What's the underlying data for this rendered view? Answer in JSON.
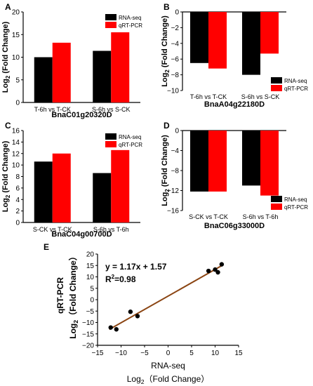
{
  "chart_data": [
    {
      "panel": "A",
      "type": "bar",
      "title": "BnaC01g20320D",
      "ylabel_main": "Log",
      "ylabel_sub": "2",
      "ylabel_rest": " (Fold Change)",
      "categories": [
        "T-6h vs T-CK",
        "S-6h vs S-CK"
      ],
      "ylim": [
        0,
        20
      ],
      "yticks": [
        0,
        5,
        10,
        15,
        20
      ],
      "legend": [
        "RNA-seq",
        "qRT-PCR"
      ],
      "legend_position": "top-right",
      "series": [
        {
          "name": "RNA-seq",
          "values": [
            10.0,
            11.4
          ]
        },
        {
          "name": "qRT-PCR",
          "values": [
            13.2,
            15.5
          ]
        }
      ]
    },
    {
      "panel": "B",
      "type": "bar",
      "title": "BnaA04g22180D",
      "ylabel_main": "Log",
      "ylabel_sub": "2",
      "ylabel_rest": " (Fold Change)",
      "categories": [
        "T-6h vs T-CK",
        "S-6h vs S-CK"
      ],
      "ylim": [
        -10,
        0
      ],
      "yticks": [
        0,
        -2,
        -4,
        -6,
        -8,
        -10
      ],
      "legend": [
        "RNA-seq",
        "qRT-PCR"
      ],
      "legend_position": "bottom-right",
      "series": [
        {
          "name": "RNA-seq",
          "values": [
            -6.5,
            -8.0
          ]
        },
        {
          "name": "qRT-PCR",
          "values": [
            -7.2,
            -5.3
          ]
        }
      ]
    },
    {
      "panel": "C",
      "type": "bar",
      "title": "BnaC04g00700D",
      "ylabel_main": "Log",
      "ylabel_sub": "2",
      "ylabel_rest": " (Fold Change)",
      "categories": [
        "S-CK vs T-CK",
        "S-6h vs T-6h"
      ],
      "ylim": [
        0,
        16
      ],
      "yticks": [
        0,
        2,
        4,
        6,
        8,
        10,
        12,
        14,
        16
      ],
      "legend": [
        "RNA-seq",
        "qRT-PCR"
      ],
      "legend_position": "top-right",
      "series": [
        {
          "name": "RNA-seq",
          "values": [
            10.6,
            8.6
          ]
        },
        {
          "name": "qRT-PCR",
          "values": [
            12.0,
            12.6
          ]
        }
      ]
    },
    {
      "panel": "D",
      "type": "bar",
      "title": "BnaC06g33000D",
      "ylabel_main": "Log",
      "ylabel_sub": "2",
      "ylabel_rest": " (Fold Change)",
      "categories": [
        "S-CK vs T-CK",
        "S-6h vs T-6h"
      ],
      "ylim": [
        -16,
        0
      ],
      "yticks": [
        0,
        -4,
        -8,
        -12,
        -16
      ],
      "legend": [
        "RNA-seq",
        "qRT-PCR"
      ],
      "legend_position": "bottom-right",
      "series": [
        {
          "name": "RNA-seq",
          "values": [
            -12.2,
            -11.0
          ]
        },
        {
          "name": "qRT-PCR",
          "values": [
            -12.2,
            -13.0
          ]
        }
      ]
    },
    {
      "panel": "E",
      "type": "scatter",
      "xlabel": "RNA-seq",
      "xlabel2_main": "Log",
      "xlabel2_sub": "2",
      "xlabel2_rest": "（Fold Change）",
      "ylabel": "qRT-PCR",
      "ylabel2_main": "Log",
      "ylabel2_sub": "2",
      "ylabel2_rest": "（Fold Change）",
      "xlim": [
        -15,
        15
      ],
      "ylim": [
        -20,
        20
      ],
      "xticks": [
        -15,
        -10,
        -5,
        0,
        5,
        10,
        15
      ],
      "yticks": [
        -20,
        -15,
        -10,
        -5,
        0,
        5,
        10,
        15,
        20
      ],
      "equation": "y = 1.17x + 1.57",
      "r2_main": "R",
      "r2_sup": "2",
      "r2_rest": "=0.98",
      "fit": {
        "slope": 1.17,
        "intercept": 1.57,
        "x_range": [
          -12.5,
          11.5
        ]
      },
      "points": [
        {
          "x": -12.2,
          "y": -12.2
        },
        {
          "x": -11.0,
          "y": -13.0
        },
        {
          "x": -8.0,
          "y": -5.3
        },
        {
          "x": -6.5,
          "y": -7.2
        },
        {
          "x": 8.6,
          "y": 12.6
        },
        {
          "x": 10.0,
          "y": 13.2
        },
        {
          "x": 10.6,
          "y": 12.0
        },
        {
          "x": 11.4,
          "y": 15.5
        }
      ]
    }
  ],
  "colors": {
    "rna": "#000000",
    "qpcr": "#ff0000",
    "fit": "#8b4513",
    "axis": "#000000",
    "point": "#000000"
  }
}
